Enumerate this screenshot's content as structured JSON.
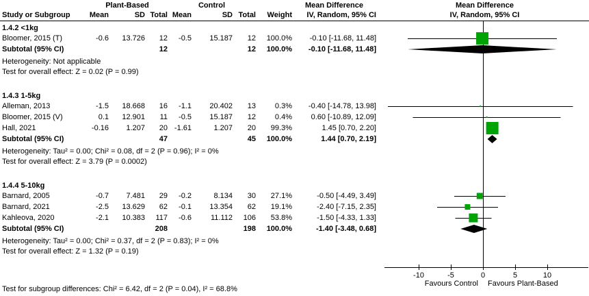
{
  "table": {
    "group1_header": "Plant-Based",
    "group2_header": "Control",
    "columns": {
      "study": "Study or Subgroup",
      "mean": "Mean",
      "sd": "SD",
      "total": "Total",
      "weight": "Weight"
    },
    "effect_header": "Mean Difference",
    "method_header": "IV, Random, 95% CI",
    "subtotal_label": "Subtotal (95% CI)"
  },
  "colors": {
    "marker_green": "#00a306",
    "summary_black": "#000000",
    "axis_black": "#000000",
    "background": "#ffffff"
  },
  "chart_data": {
    "type": "forest",
    "title": "Mean Difference, IV, Random, 95% CI",
    "x_axis": {
      "ticks": [
        -10,
        -5,
        0,
        5,
        10
      ],
      "range": [
        -15.3,
        16.4
      ],
      "left_label": "Favours Control",
      "right_label": "Favours Plant-Based"
    },
    "subgroups": [
      {
        "title": "1.4.2 <1kg",
        "studies": [
          {
            "name": "Bloomer, 2015 (T)",
            "mean1": -0.6,
            "sd1": 13.726,
            "n1": 12,
            "mean2": -0.5,
            "sd2": 15.187,
            "n2": 12,
            "weight": 100.0,
            "md": -0.1,
            "lo": -11.68,
            "hi": 11.48
          }
        ],
        "subtotal": {
          "n1": 12,
          "n2": 12,
          "weight": 100.0,
          "md": -0.1,
          "lo": -11.68,
          "hi": 11.48
        },
        "heterogeneity": "Heterogeneity: Not applicable",
        "overall_effect": "Test for overall effect: Z = 0.02 (P = 0.99)"
      },
      {
        "title": "1.4.3 1-5kg",
        "studies": [
          {
            "name": "Alleman, 2013",
            "mean1": -1.5,
            "sd1": 18.668,
            "n1": 16,
            "mean2": -1.1,
            "sd2": 20.402,
            "n2": 13,
            "weight": 0.3,
            "md": -0.4,
            "lo": -14.78,
            "hi": 13.98
          },
          {
            "name": "Bloomer, 2015 (V)",
            "mean1": 0.1,
            "sd1": 12.901,
            "n1": 11,
            "mean2": -0.5,
            "sd2": 15.187,
            "n2": 12,
            "weight": 0.4,
            "md": 0.6,
            "lo": -10.89,
            "hi": 12.09
          },
          {
            "name": "Hall, 2021",
            "mean1": -0.16,
            "sd1": 1.207,
            "n1": 20,
            "mean2": -1.61,
            "sd2": 1.207,
            "n2": 20,
            "weight": 99.3,
            "md": 1.45,
            "lo": 0.7,
            "hi": 2.2
          }
        ],
        "subtotal": {
          "n1": 47,
          "n2": 45,
          "weight": 100.0,
          "md": 1.44,
          "lo": 0.7,
          "hi": 2.19
        },
        "heterogeneity": "Heterogeneity: Tau² = 0.00; Chi² = 0.08, df = 2 (P = 0.96); I² = 0%",
        "overall_effect": "Test for overall effect: Z = 3.79 (P = 0.0002)"
      },
      {
        "title": "1.4.4 5-10kg",
        "studies": [
          {
            "name": "Barnard, 2005",
            "mean1": -0.7,
            "sd1": 7.481,
            "n1": 29,
            "mean2": -0.2,
            "sd2": 8.134,
            "n2": 30,
            "weight": 27.1,
            "md": -0.5,
            "lo": -4.49,
            "hi": 3.49
          },
          {
            "name": "Barnard, 2021",
            "mean1": -2.5,
            "sd1": 13.629,
            "n1": 62,
            "mean2": -0.1,
            "sd2": 13.354,
            "n2": 62,
            "weight": 19.1,
            "md": -2.4,
            "lo": -7.15,
            "hi": 2.35
          },
          {
            "name": "Kahleova, 2020",
            "mean1": -2.1,
            "sd1": 10.383,
            "n1": 117,
            "mean2": -0.6,
            "sd2": 11.112,
            "n2": 106,
            "weight": 53.8,
            "md": -1.5,
            "lo": -4.33,
            "hi": 1.33
          }
        ],
        "subtotal": {
          "n1": 208,
          "n2": 198,
          "weight": 100.0,
          "md": -1.4,
          "lo": -3.48,
          "hi": 0.68
        },
        "heterogeneity": "Heterogeneity: Tau² = 0.00; Chi² = 0.37, df = 2 (P = 0.83); I² = 0%",
        "overall_effect": "Test for overall effect: Z = 1.32 (P = 0.19)"
      }
    ],
    "subgroup_difference_test": "Test for subgroup differences: Chi² = 6.42, df = 2 (P = 0.04), I² = 68.8%"
  }
}
